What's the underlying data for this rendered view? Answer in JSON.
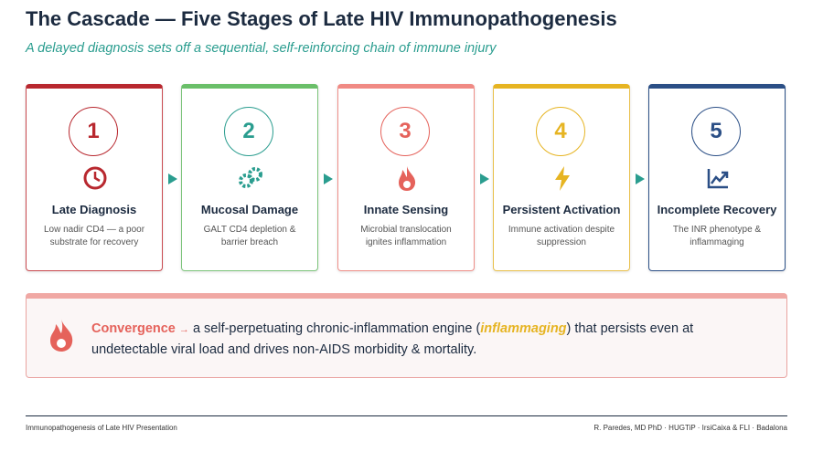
{
  "header": {
    "title": "The Cascade — Five Stages of Late HIV Immunopathogenesis",
    "subtitle": "A delayed diagnosis sets off a sequential, self-reinforcing chain of immune injury"
  },
  "stages": [
    {
      "number": "1",
      "title": "Late Diagnosis",
      "description": "Low nadir CD4 — a poor substrate for recovery",
      "color": "#b8282f"
    },
    {
      "number": "2",
      "title": "Mucosal Damage",
      "description": "GALT CD4 depletion & barrier breach",
      "color": "#2a9d8f"
    },
    {
      "number": "3",
      "title": "Innate Sensing",
      "description": "Microbial translocation ignites inflammation",
      "color": "#e5625b"
    },
    {
      "number": "4",
      "title": "Persistent Activation",
      "description": "Immune activation despite suppression",
      "color": "#e6b422"
    },
    {
      "number": "5",
      "title": "Incomplete Recovery",
      "description": "The INR phenotype & inflammaging",
      "color": "#2b4f86"
    }
  ],
  "convergence": {
    "label": "Convergence",
    "arrow": "→",
    "text_before": "a self-perpetuating chronic-inflammation engine (",
    "highlight": "inflammaging",
    "text_after": ") that persists even at undetectable viral load and drives non-AIDS morbidity & mortality."
  },
  "footer": {
    "left": "Immunopathogenesis of Late HIV Presentation",
    "right": "R. Paredes, MD PhD · HUGTiP · IrsiCaixa & FLI · Badalona"
  }
}
